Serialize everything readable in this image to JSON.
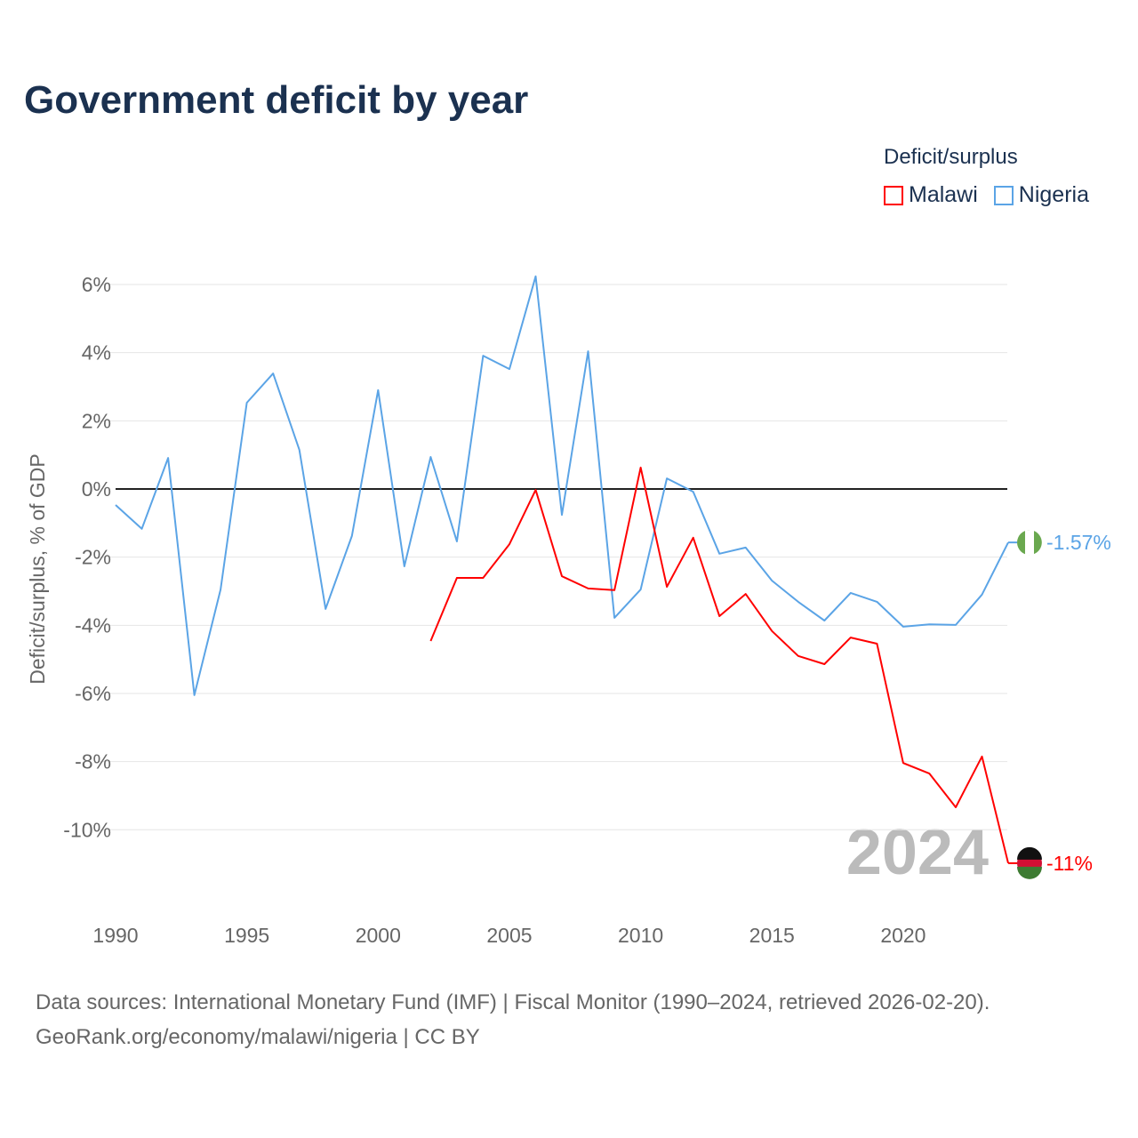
{
  "title": "Government deficit by year",
  "legend": {
    "title": "Deficit/surplus",
    "items": [
      {
        "label": "Malawi",
        "color": "#ff0000"
      },
      {
        "label": "Nigeria",
        "color": "#5ba4e6"
      }
    ]
  },
  "source": {
    "line1": "Data sources: International Monetary Fund (IMF) | Fiscal Monitor (1990–2024, retrieved 2026-02-20).",
    "line2": "GeoRank.org/economy/malawi/nigeria | CC BY"
  },
  "chart_data": {
    "type": "line",
    "title": "Government deficit by year",
    "xlabel": "",
    "ylabel": "Deficit/surplus, % of GDP",
    "xlim": [
      1990,
      2024
    ],
    "ylim": [
      -11.5,
      6.5
    ],
    "x_ticks": [
      1990,
      1995,
      2000,
      2005,
      2010,
      2015,
      2020
    ],
    "y_ticks": [
      6,
      4,
      2,
      0,
      -2,
      -4,
      -6,
      -8,
      -10
    ],
    "y_tick_labels": [
      "6%",
      "4%",
      "2%",
      "0%",
      "-2%",
      "-4%",
      "-6%",
      "-8%",
      "-10%"
    ],
    "watermark_year": "2024",
    "grid": true,
    "legend_position": "top-right",
    "series": [
      {
        "name": "Nigeria",
        "color": "#5ba4e6",
        "end_label": "-1.57%",
        "x_start": 1990,
        "values": [
          -0.47,
          -1.17,
          0.91,
          -6.05,
          -2.95,
          2.53,
          3.39,
          1.15,
          -3.52,
          -1.38,
          2.9,
          -2.27,
          0.94,
          -1.54,
          3.91,
          3.52,
          6.24,
          -0.76,
          4.04,
          -3.78,
          -2.95,
          0.31,
          -0.08,
          -1.9,
          -1.72,
          -2.69,
          -3.31,
          -3.86,
          -3.05,
          -3.31,
          -4.04,
          -3.97,
          -3.99,
          -3.1,
          -1.57
        ]
      },
      {
        "name": "Malawi",
        "color": "#ff0000",
        "end_label": "-11%",
        "x_start": 2002,
        "values": [
          -4.46,
          -2.61,
          -2.61,
          -1.62,
          -0.03,
          -2.56,
          -2.92,
          -2.97,
          0.63,
          -2.87,
          -1.43,
          -3.73,
          -3.08,
          -4.17,
          -4.9,
          -5.14,
          -4.36,
          -4.54,
          -8.04,
          -8.35,
          -9.34,
          -7.85,
          -10.98
        ]
      }
    ]
  }
}
